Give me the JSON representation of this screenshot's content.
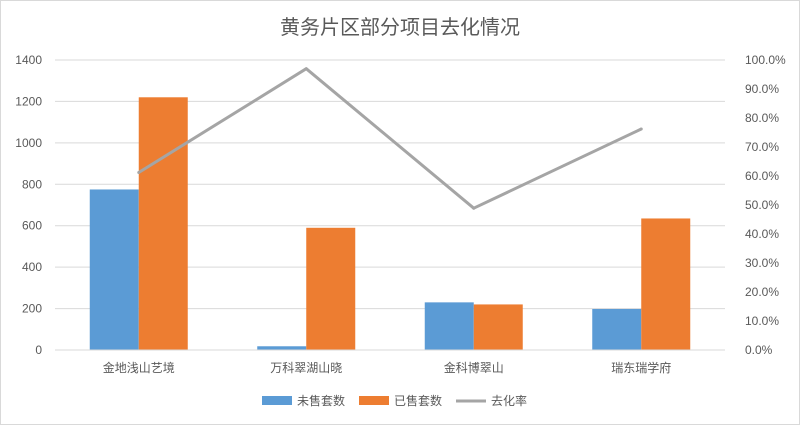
{
  "chart_data": {
    "type": "bar",
    "title": "黄务片区部分项目去化情况",
    "categories": [
      "金地浅山艺境",
      "万科翠湖山晓",
      "金科博翠山",
      "瑞东瑞学府"
    ],
    "series": [
      {
        "name": "未售套数",
        "type": "bar",
        "axis": "left",
        "color": "#5B9BD5",
        "values": [
          775,
          18,
          230,
          198
        ]
      },
      {
        "name": "已售套数",
        "type": "bar",
        "axis": "left",
        "color": "#ED7D31",
        "values": [
          1220,
          590,
          220,
          635
        ]
      },
      {
        "name": "去化率",
        "type": "line",
        "axis": "right",
        "color": "#A5A5A5",
        "values": [
          61.2,
          97.0,
          48.9,
          76.2
        ]
      }
    ],
    "ylim": [
      0,
      1400
    ],
    "yticks": [
      "0",
      "200",
      "400",
      "600",
      "800",
      "1000",
      "1200",
      "1400"
    ],
    "y2lim": [
      0,
      100
    ],
    "y2ticks": [
      "0.0%",
      "10.0%",
      "20.0%",
      "30.0%",
      "40.0%",
      "50.0%",
      "60.0%",
      "70.0%",
      "80.0%",
      "90.0%",
      "100.0%"
    ],
    "xlabel": "",
    "ylabel": "",
    "grid": true,
    "legend_position": "bottom"
  }
}
